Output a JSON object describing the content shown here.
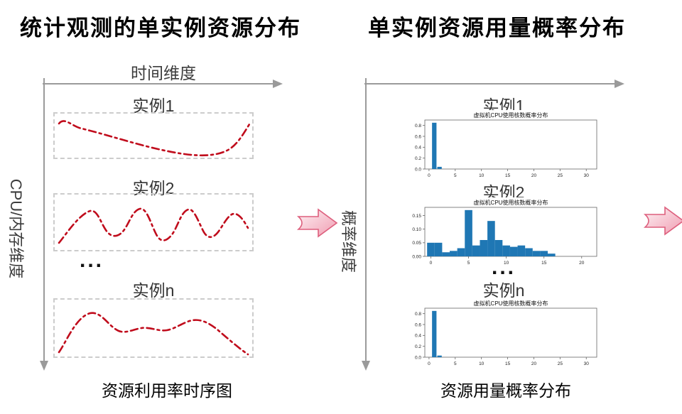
{
  "colors": {
    "curve_red": "#c00c1c",
    "bar_blue": "#1f77b4",
    "axis_gray": "#9a9a9a",
    "arrow_fill_light": "#fdf0f3",
    "arrow_fill_dark": "#f09cb1",
    "arrow_outline": "#dd5f7d"
  },
  "left_panel": {
    "title": "统计观测的单实例资源分布",
    "x_axis_label": "时间维度",
    "y_axis_label": "CPU/内存维度",
    "instances": [
      {
        "label": "实例1"
      },
      {
        "label": "实例2"
      },
      {
        "label": "实例n"
      }
    ],
    "ellipsis": "...",
    "caption": "资源利用率时序图"
  },
  "right_panel": {
    "title": "单实例资源用量概率分布",
    "y_axis_label": "概率维度",
    "ellipsis": "...",
    "caption": "资源用量概率分布"
  },
  "chart_data": [
    {
      "type": "bar",
      "instance": "实例1",
      "title": "虚拟机CPU使用核数概率分布",
      "x": [
        1,
        2
      ],
      "values": [
        0.85,
        0.04
      ],
      "x_ticks": [
        0,
        5,
        10,
        15,
        20,
        25,
        30
      ],
      "y_ticks": [
        0.0,
        0.2,
        0.4,
        0.6,
        0.8
      ],
      "y_tick_labels": [
        "0.0",
        "0.2",
        "0.4",
        "0.6",
        "0.8"
      ],
      "xlim": [
        -0.8,
        32
      ],
      "ylim": [
        0,
        0.9
      ],
      "bar_frac": 0.85,
      "xlabel": "",
      "ylabel": "",
      "legend": null,
      "grid": false
    },
    {
      "type": "bar",
      "instance": "实例2",
      "title": "虚拟机CPU使用核数概率分布",
      "x": [
        0,
        1,
        2,
        3,
        4,
        5,
        6,
        7,
        8,
        9,
        10,
        11,
        12,
        13,
        14,
        15,
        16
      ],
      "values": [
        0.05,
        0.05,
        0.015,
        0.02,
        0.03,
        0.17,
        0.04,
        0.06,
        0.13,
        0.06,
        0.04,
        0.035,
        0.04,
        0.03,
        0.02,
        0.02,
        0.01
      ],
      "x_ticks": [
        0,
        5,
        10,
        15,
        20
      ],
      "y_ticks": [
        0.0,
        0.05,
        0.1,
        0.15
      ],
      "y_tick_labels": [
        "0.00",
        "0.05",
        "0.10",
        "0.15"
      ],
      "xlim": [
        -0.8,
        22
      ],
      "ylim": [
        0,
        0.18
      ],
      "bar_frac": 1.0,
      "xlabel": "",
      "ylabel": "",
      "legend": null,
      "grid": false
    },
    {
      "type": "bar",
      "instance": "实例n",
      "title": "虚拟机CPU使用核数概率分布",
      "x": [
        1,
        2
      ],
      "values": [
        0.85,
        0.03
      ],
      "x_ticks": [
        0,
        5,
        10,
        15,
        20,
        25,
        30
      ],
      "y_ticks": [
        0.0,
        0.2,
        0.4,
        0.6,
        0.8
      ],
      "y_tick_labels": [
        "0.0",
        "0.2",
        "0.4",
        "0.6",
        "0.8"
      ],
      "xlim": [
        -0.8,
        32
      ],
      "ylim": [
        0,
        0.9
      ],
      "bar_frac": 0.85,
      "xlabel": "",
      "ylabel": "",
      "legend": null,
      "grid": false
    }
  ]
}
